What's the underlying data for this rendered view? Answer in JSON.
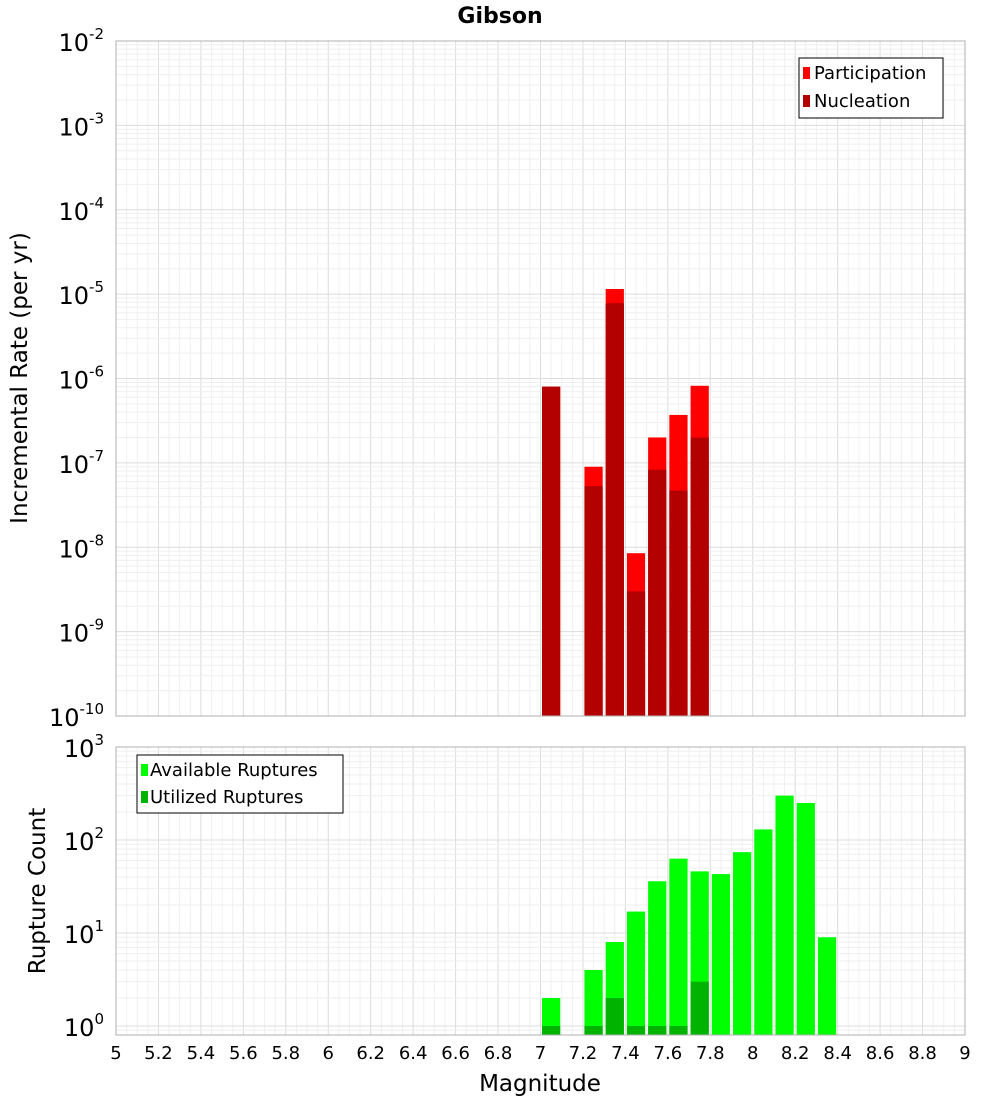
{
  "title": "Gibson",
  "xlabel": "Magnitude",
  "x_ticks": [
    "5",
    "5.2",
    "5.4",
    "5.6",
    "5.8",
    "6",
    "6.2",
    "6.4",
    "6.6",
    "6.8",
    "7",
    "7.2",
    "7.4",
    "7.6",
    "7.8",
    "8",
    "8.2",
    "8.4",
    "8.6",
    "8.8",
    "9"
  ],
  "colors": {
    "participation": "#ff0000",
    "nucleation": "#b30000",
    "available": "#00ff00",
    "utilized": "#00b300"
  },
  "chart_data": [
    {
      "type": "bar",
      "panel": "top",
      "title": "Gibson",
      "xlabel": "Magnitude",
      "ylabel": "Incremental Rate (per yr)",
      "yscale": "log",
      "xlim": [
        5,
        9
      ],
      "ylim": [
        1e-10,
        0.01
      ],
      "y_ticks": [
        {
          "base": "10",
          "exp": "-2"
        },
        {
          "base": "10",
          "exp": "-3"
        },
        {
          "base": "10",
          "exp": "-4"
        },
        {
          "base": "10",
          "exp": "-5"
        },
        {
          "base": "10",
          "exp": "-6"
        },
        {
          "base": "10",
          "exp": "-7"
        },
        {
          "base": "10",
          "exp": "-8"
        },
        {
          "base": "10",
          "exp": "-9"
        },
        {
          "base": "10",
          "exp": "-10"
        }
      ],
      "grid": true,
      "legend_position": "top-right",
      "bin_width": 0.1,
      "x": [
        7.05,
        7.25,
        7.35,
        7.45,
        7.55,
        7.65,
        7.75
      ],
      "series": [
        {
          "name": "Participation",
          "values": [
            8e-07,
            9e-08,
            1.15e-05,
            8.5e-09,
            2e-07,
            3.7e-07,
            8.2e-07
          ]
        },
        {
          "name": "Nucleation",
          "values": [
            8e-07,
            5.3e-08,
            7.8e-06,
            3e-09,
            8.3e-08,
            4.7e-08,
            2e-07
          ]
        }
      ]
    },
    {
      "type": "bar",
      "panel": "bottom",
      "xlabel": "Magnitude",
      "ylabel": "Rupture Count",
      "yscale": "log",
      "xlim": [
        5,
        9
      ],
      "ylim": [
        0.8,
        1000
      ],
      "y_ticks": [
        {
          "base": "10",
          "exp": "3"
        },
        {
          "base": "10",
          "exp": "2"
        },
        {
          "base": "10",
          "exp": "1"
        },
        {
          "base": "10",
          "exp": "0"
        }
      ],
      "grid": true,
      "legend_position": "top-left",
      "bin_width": 0.1,
      "series": [
        {
          "name": "Available Ruptures",
          "x": [
            7.05,
            7.25,
            7.35,
            7.45,
            7.55,
            7.65,
            7.75,
            7.85,
            7.95,
            8.05,
            8.15,
            8.25,
            8.35
          ],
          "values": [
            2,
            4,
            8,
            17,
            36,
            63,
            46,
            43,
            74,
            130,
            300,
            250,
            9
          ]
        },
        {
          "name": "Utilized Ruptures",
          "x": [
            7.05,
            7.25,
            7.35,
            7.45,
            7.55,
            7.65,
            7.75
          ],
          "values": [
            1,
            1,
            2,
            1,
            1,
            1,
            3
          ]
        }
      ]
    }
  ]
}
